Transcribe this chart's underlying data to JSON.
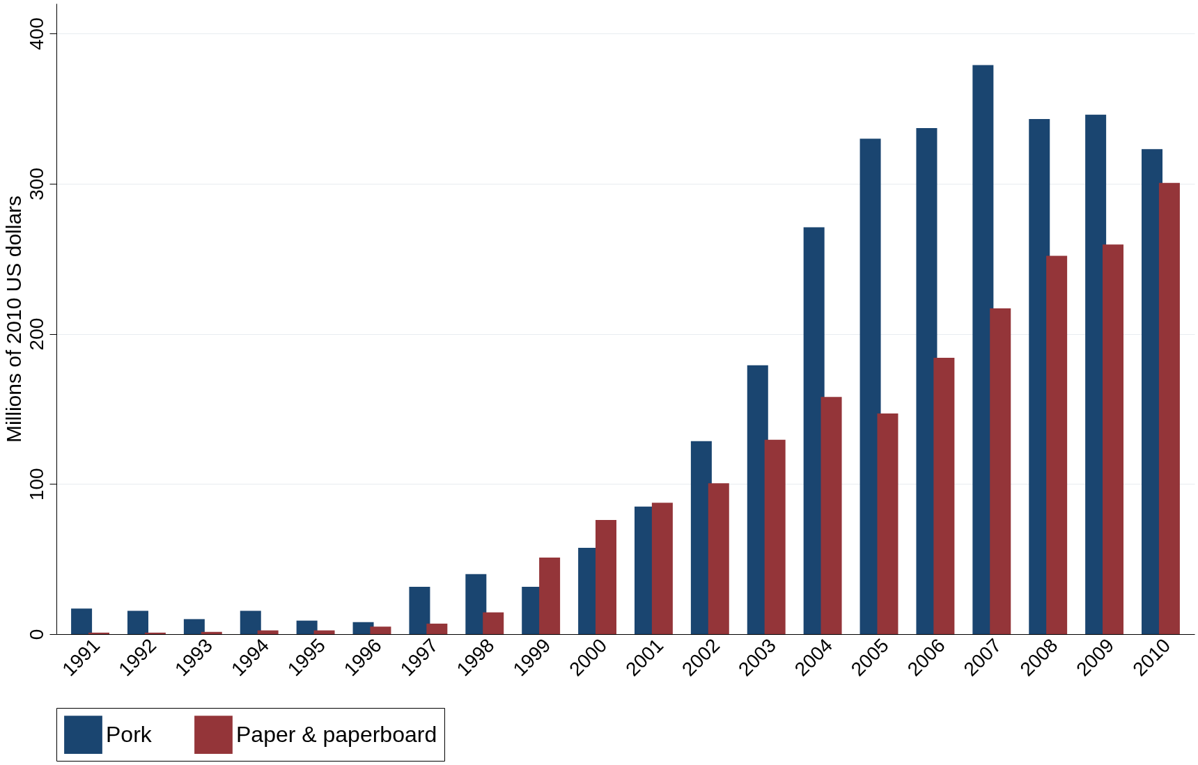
{
  "chart_data": {
    "type": "bar",
    "ylabel": "Millions of 2010 US dollars",
    "categories": [
      "1991",
      "1992",
      "1993",
      "1994",
      "1995",
      "1996",
      "1997",
      "1998",
      "1999",
      "2000",
      "2001",
      "2002",
      "2003",
      "2004",
      "2005",
      "2006",
      "2007",
      "2008",
      "2009",
      "2010"
    ],
    "series": [
      {
        "name": "Pork",
        "color": "#1a4570",
        "values": [
          17,
          15.5,
          10,
          15.5,
          9,
          8,
          31.5,
          40,
          31.5,
          57.5,
          85,
          128.5,
          179,
          271,
          330,
          337,
          379,
          343,
          346,
          323
        ]
      },
      {
        "name": "Paper & paperboard",
        "color": "#943539",
        "values": [
          1,
          1,
          1.5,
          2.5,
          2.5,
          5,
          7,
          14.5,
          51,
          76,
          87.5,
          100.5,
          129.5,
          158,
          147,
          184,
          217,
          252,
          259.5,
          300.5
        ]
      }
    ],
    "ylim": [
      0,
      420
    ],
    "yticks": [
      0,
      100,
      200,
      300,
      400
    ],
    "grid": "y",
    "legend": "bottom"
  }
}
